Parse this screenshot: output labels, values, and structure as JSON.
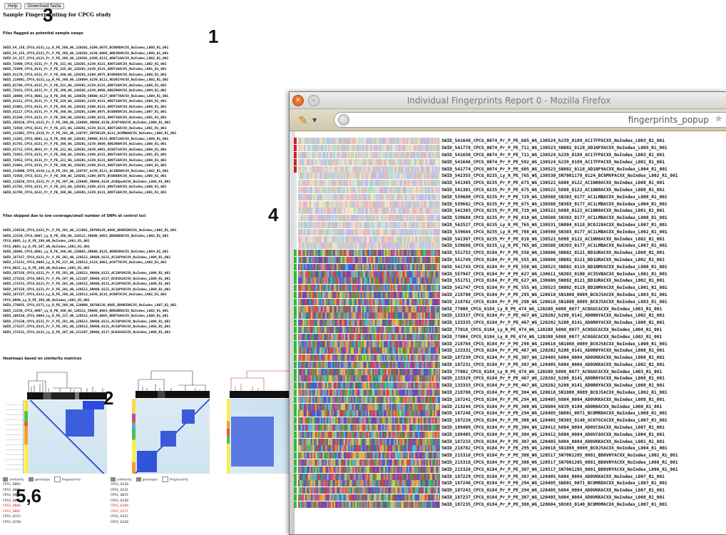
{
  "page": {
    "buttons": [
      "Help",
      "Download fasta"
    ],
    "title": "Sample Fingerprinting for CPCG study",
    "section1": "Files flagged as potential sample swaps",
    "section2": "Files skipped due to low coverage/small number of SNPs at control loci",
    "section3": "Heatmaps based on similarity matrices"
  },
  "callouts": {
    "c1": "1",
    "c2": "2",
    "c3": "3",
    "c4": "4",
    "c56": "5,6"
  },
  "flagged_files": [
    "SWID_54_156_CPCG_0131_Ly_R_PE_386_WG_120201_h209_0075_BC0D6DACXX_NoIndex_L008_R1_001",
    "SWID_54_155_CPCG_0131_Pr_P_PE_386_WG_120201_h239_0086_AD0JKHACXX_NoIndex_L008_R1_001",
    "SWID_54_157_CPCG_0131_Pr_P_PE_386_WG_120201_h209_0131_AD0T1AACXX_NoIndex_L002_R1_001",
    "SWID_72890_CPCG_0131_Pr_P_PE_221_WG_120201_h239_0131_AD0T1AACXX_NoIndex_L002_R1_001",
    "SWID_72894_CPCG_0131_Pr_P_PE_225_WG_120201_h239_0131_AD0T1AACXX_NoIndex_L001_R1_001",
    "SWID_81179_CPCG_0131_Pr_P_PE_380_WG_120201_h209_0075_BC0D6DACXX_NoIndex_L008_R1_001",
    "SWID_116001_CPCG_0131_Ly_R_PE_380_WG_120804_h239_0111_AD1R1YACXX_NoIndex_L002_R1_001",
    "SWID_91708_CPCG_0131_Pr_P_PE_221_WG_120201_h239_0131_AD0T1AACXX_NoIndex_L008_R1_001",
    "SWID_72831_CPCG_0131_Pr_P_PE_380_WG_120202_h239_0088_AD0JKHACXX_NoIndex_L004_R1_001",
    "SWID_10080_CPCG_0001_Ly_R_PE_380_WG_120030_SN600_0127_BD0T7AACXX_NoIndex_L008_R1_001",
    "SWID_81111_CPCG_0131_Pr_P_PE_224_WG_120201_h239_0131_AD0T1AACXX_NoIndex_L004_R1_001",
    "SWID_81001_CPCG_0131_Pr_P_PE_386_WG_120201_h209_0131_AD0T1AACXX_NoIndex_L008_R1_001",
    "SWID_81117_CPCG_0131_Pr_P_PE_380_WG_120201_h209_0075_BC0D6DACXX_NoIndex_L007_R1_001",
    "SWID_81108_CPCG_0131_Pr_P_PE_386_WG_120201_h209_0131_AD0T1AACXX_NoIndex_L001_R1_001",
    "SWID_105610_CPCG_0131_Pr_P_PE_380_WG_120805_SN600_0130_AC0T4AACXX_NoIndex_L008_R1_001",
    "SWID_72850_CPCG_0131_Pr_P_PE_221_WG_120201_h239_0131_AD0T1AACXX_NoIndex_L001_R1_001",
    "SWID_111001_CPCG_0138_Pr_P_PE_381_WG_120707_SN700129_0111_AC0MWAACXX_NoIndex_L008_R1_001",
    "SWID_11201_CPCG_0001_Ly_R_PE_380_WG_120201_SN600_0133_BD0T1AACXX_NoIndex_L008_R1_001",
    "SWID_81701_CPCG_0131_Pr_P_PE_386_WG_120201_h239_0088_AD0JKHACXX_NoIndex_L008_R1_001",
    "SWID_81712_CPCG_0031_Pr_P_PE_221_WG_120201_h839_0081_AC0GT1ACXX_NoIndex_L008_R1_001",
    "SWID_72853_CPCG_0131_Pr_P_PE_380_WG_120201_h209_0131_AD0T1AACXX_NoIndex_L001_R1_001",
    "SWID_72852_CPCG_0131_Pr_P_PE_221_WG_120201_h239_0131_AD0T1AACXX_NoIndex_L008_R1_001",
    "SWID_81001_CPCG_0131_Pr_P_PE_380_WG_120201_h209_0131_AD0T1AACXX_NoIndex_L004_R1_001",
    "SWID_214000_CPCG_0138_Ly_R_PE_381_WG_120707_h239_0121_AC1REHACXX_NoIndex_L002_R1_001",
    "SWID_72850_CPCG_0131_Pr_P_PE_380_WG_120201_h209_0075_BC0D6DACXX_NoIndex_L008_R1_001",
    "SWID_115010_CPCG_0131_Pr_P_PE_387_WG_120805_SN600_0126_AC0UpuACXX_NoIndex_L008_R1_001",
    "SWID_81701_CPCG_0131_Pr_P_PE_221_WG_120201_h209_0131_AD0T1AACXX_NoIndex_L008_R1_001",
    "SWID_81708_CPCG_0131_Pr_P_PE_386_WG_120201_h239_0131_AD0T1AACXX_NoIndex_L001_R1_001"
  ],
  "skipped_files": [
    "SWID_136529_CPCG_0152_Pr_P_PE_381_WG_121001_SN700129_0088_BD0K5DACXX_NoIndex_L002_R1_001",
    "SWID_11539_CPCG_0007_Ly_R_PE_380_WG_120111_SN600_0083_BD0GBDACXX_NoIndex_L002_R1_001",
    "CPCG_0001_Ly_R_PE_380_WG_NoIndex_L001_R1_001",
    "CPCG_0003_Ly_R_PE_387_WG_NoIndex_L001_R1_001",
    "SWID_10005_CPCG_0001_Ly_R_PE_380_WG_120001_SN600_0125_AD0D2RACXX_NoIndex_L004_R1_001",
    "SWID_187157_CPCG_0131_Pr_P_PE_381_WG_120512_SN600_0131_AC1UPVACXX_NoIndex_L008_R1_001",
    "SWID_171531_CPCG_0005_Ly_R_PE_317_WG_120512_h119_0081_AC0TTACXX_NoIndex_L002_R1_001",
    "CPCG_0021_Ly_R_PE_380_WG_NoIndex_L001_R1_001",
    "SWID_187156_CPCG_0131_Pr_P_PE_381_WG_120512_SN600_0131_AC1UPVACXX_NoIndex_L008_R1_001",
    "SWID_171532_CPCG_0031_Pr_P_PE_387_WG_121107_SN600_0117_BC01N1ACXX_NoIndex_L008_R1_001",
    "SWID_171531_CPCG_0131_Pr_P_PE_381_WG_120512_SN600_0131_AC1UPVACXX_NoIndex_L008_R1_001",
    "SWID_187158_CPCG_0131_Pr_P_PE_381_WG_120512_SN600_0131_AC1UPVACXX_NoIndex_L004_R1_001",
    "SWID_187157_CPCG_0131_Ly_R_PE_386_WG_120512_h839_0118_AC0NTACXX_NoIndex_L002_R1_001",
    "CPCG_0060_Ly_R_PE_380_WG_NoIndex_L001_R1_001",
    "SWID_170855_CPCG_0171_Ly_R_PE_388_WG_120000_SN700130_0085_BD0K5DACXX_NoIndex_L007_R1_001",
    "SWID_11530_CPCG_0007_Ly_R_PE_380_WG_120111_SN600_0083_BD0GBDACXX_NoIndex_L002_R1_001",
    "SWID_108150_CPCG_0004_Ly_R_PE_317_WG_120512_h839_0085_BD0T5AACXX_NoIndex_L008_R1_001",
    "SWID_171530_CPCG_0131_Pr_P_PE_381_WG_120512_SN600_0131_AC1UPVACXX_NoIndex_L008_R1_001",
    "SWID_171537_CPCG_0131_Pr_P_PE_381_WG_120512_SN600_0131_AC1UPVACXX_NoIndex_L002_R1_001",
    "SWID_171531_CPCG_0131_Ly_R_PE_387_WG_121107_SN600_0117_BC01N1ACXX_NoIndex_L008_R1_001"
  ],
  "heatmaps": {
    "legend": [
      "similarity",
      "genotype",
      "fingerprints"
    ],
    "samples": [
      [
        "CPCG_0003",
        "CPCG_0001",
        "CPCG_0004",
        "CPCG_0005",
        "CPCG_0006",
        "CPCG_0007",
        "CPCG_0152",
        "CPCG_0150"
      ],
      [
        "CPCG_0130",
        "CPCG_0131",
        "CPCG_0035",
        "CPCG_0138",
        "CPCG_0180",
        "CPCG_0171",
        "CPCG_0152",
        "CPCG_0120"
      ]
    ]
  },
  "popup": {
    "window_title": "Individual Fingerprints Report 0 - Mozilla Firefox",
    "url": "fingerprints_popup",
    "rows": [
      {
        "marker": "#cc2222",
        "label": "SWID_541648_CPCG_0074_Pr_P_PE_605_WG_130524_h239_0189_AC1TFPACXX_NoIndex_L003_R1_001"
      },
      {
        "marker": "#cc2222",
        "label": "SWID_541778_CPCG_0074_Pr_P_PE_711_WG_130523_SN802_0118_AD1NF9ACXX_NoIndex_L005_R1_001"
      },
      {
        "marker": "#cc2222",
        "label": "SWID_541650_CPCG_0074_Pr_P_PE_711_WG_130524_h239_0189_AC1TFPACXX_NoIndex_L003_R1_001"
      },
      {
        "marker": "#cc2222",
        "label": "SWID_541646_CPCG_0074_Pr_P_PE_592_WG_130524_h239_0189_AC1TFPACXX_NoIndex_L001_R1_001"
      },
      {
        "marker": "#cc2222",
        "label": "SWID_541774_CPCG_0074_Pr_P_PE_605_WG_130523_SN802_0118_AD1NF9ACXX_NoIndex_L004_R1_001"
      },
      {
        "marker": "#dde6ee",
        "label": "SWID_542355_CPCG_0235_Ly_R_PE_765_WG_130530_SN7001179_0124_BC0MVPACXX_NoIndex_L002_R1_001"
      },
      {
        "marker": "#dde6ee",
        "label": "SWID_541305_CPCG_0235_Pr_P_PE_675_WG_130522_h808_0122_AC1N00ACXX_NoIndex_L008_R1_001"
      },
      {
        "marker": "#dde6ee",
        "label": "SWID_541301_CPCG_0235_Pr_P_PE_675_WG_130522_h808_0122_AC1N00ACXX_NoIndex_L008_R1_001"
      },
      {
        "marker": "#dde6ee",
        "label": "SWID_539680_CPCG_0235_Pr_P_PE_729_WG_130508_SN303_0177_AC1LMBACXX_NoIndex_L008_R1_001"
      },
      {
        "marker": "#dde6ee",
        "label": "SWID_539682_CPCG_0235_Pr_P_PE_675_WG_130508_SN303_0177_AC1LMBACXX_NoIndex_L004_R1_001"
      },
      {
        "marker": "#dde6ee",
        "label": "SWID_541303_CPCG_0235_Pr_P_PE_729_WG_130522_h808_0122_AC1N00ACXX_NoIndex_L001_R1_001"
      },
      {
        "marker": "#dde6ee",
        "label": "SWID_539688_CPCG_0235_Pr_P_PE_810_WG_130508_SN303_0177_AC1LMBACXX_NoIndex_L008_R1_001"
      },
      {
        "marker": "#dde6ee",
        "label": "SWID_562527_CPCG_0235_Ly_R_PE_765_WG_130531_SN804_0118_BC0J20ACXX_NoIndex_L007_R1_001"
      },
      {
        "marker": "#dde6ee",
        "label": "SWID_539684_CPCG_0235_Ly_R_PE_788_WG_130508_SN303_0177_AC1LMBACXX_NoIndex_L002_R1_001"
      },
      {
        "marker": "#dde6ee",
        "label": "SWID_541307_CPCG_0235_Pr_P_PE_810_WG_130522_h808_0122_AC1N00ACXX_NoIndex_L002_R1_001"
      },
      {
        "marker": "#dde6ee",
        "label": "SWID_539686_CPCG_0235_Ly_R_PE_765_WG_130508_SN303_0177_AC1LMBACXX_NoIndex_L007_R1_001"
      },
      {
        "marker": "#33bb33",
        "label": "SWID_551753_CPCG_0184_Pr_P_PE_558_WG_130606_SN802_0121_BD1URACXX_NoIndex_L008_R1_001"
      },
      {
        "marker": "#33bb33",
        "label": "SWID_551749_CPCG_0184_Pr_P_PE_555_WG_130606_SN802_0121_BD1URACXX_NoIndex_L002_R1_001"
      },
      {
        "marker": "#33bb33",
        "label": "SWID_541743_CPCG_0184_Pr_P_PE_558_WG_130523_SN802_0119_BD1NMVACXX_NoIndex_L008_R1_001"
      },
      {
        "marker": "#33bb33",
        "label": "SWID_557947_CPCG_0184_Pr_P_PE_627_WG_130611_SN303_0180_AC3SVBACXX_NoIndex_L001_R1_001"
      },
      {
        "marker": "#33bb33",
        "label": "SWID_551751_CPCG_0184_Pr_P_PE_627_WG_130606_SN802_0121_BD1URACXX_NoIndex_L002_R1_001"
      },
      {
        "marker": "#33bb33",
        "label": "SWID_541747_CPCG_0184_Pr_P_PE_555_WG_130523_SN802_0119_BD1NMVACXX_NoIndex_L001_R1_001"
      },
      {
        "marker": "#33bb33",
        "label": "SWID_218780_CPCG_0184_Pr_P_PE_295_WG_120618_SN1088_0089_BC0J5ACXX_NoIndex_L003_R1_001"
      },
      {
        "marker": "#33bb33",
        "label": "SWID_218782_CPCG_0184_Pr_P_PE_298_WG_120618_SN1088_0089_BC0J5ACXX_NoIndex_L003_R1_001"
      },
      {
        "marker": "#33bb33",
        "label": "SWID_77008_CPCG_0184_Ly_R_PE_474_WG_120208_h808_0077_AC0GGCACXX_NoIndex_L001_R1_001"
      },
      {
        "marker": "#33bb33",
        "label": "SWID_133337_CPCG_0184_Pr_P_PE_467_WG_120202_h208_0141_AD0R0YACXX_NoIndex_L002_R1_001"
      },
      {
        "marker": "#33bb33",
        "label": "SWID_133335_CPCG_0184_Pr_P_PE_467_WG_120202_h208_0141_AD0R0YACXX_NoIndex_L008_R1_001"
      },
      {
        "marker": "#33bb33",
        "label": "SWID_77010_CPCG_0184_Ly_R_PE_474_WG_120208_h808_0077_AC0GGCACXX_NoIndex_L004_R1_001"
      },
      {
        "marker": "#33bb33",
        "label": "SWID_77004_CPCG_0184_Ly_R_PE_474_WG_120208_h808_0077_AC0GGCACXX_NoIndex_L002_R1_001"
      },
      {
        "marker": "#33bb33",
        "label": "SWID_218784_CPCG_0184_Pr_P_PE_298_WG_120618_SN1088_0089_BC0J5ACXX_NoIndex_L008_R1_001"
      },
      {
        "marker": "#33bb33",
        "label": "SWID_133331_CPCG_0184_Pr_P_PE_467_WG_120202_h208_0141_AD0R0YACXX_NoIndex_L008_R1_001"
      },
      {
        "marker": "#33bb33",
        "label": "SWID_187239_CPCG_0184_Pr_P_PE_307_WG_120405_h804_0084_AD0VKKACXX_NoIndex_L008_R1_001"
      },
      {
        "marker": "#33bb33",
        "label": "SWID_187231_CPCG_0184_Pr_P_PE_307_WG_120405_h804_0084_AD0VKKACXX_NoIndex_L002_R1_001"
      },
      {
        "marker": "#33bb33",
        "label": "SWID_77002_CPCG_0184_Ly_R_PE_474_WG_120208_h808_0077_AC0GGCACXX_NoIndex_L003_R1_001"
      },
      {
        "marker": "#33bb33",
        "label": "SWID_133329_CPCG_0184_Pr_P_PE_467_WG_120202_h208_0141_AD0R0YACXX_NoIndex_L008_R1_001"
      },
      {
        "marker": "#33bb33",
        "label": "SWID_133333_CPCG_0184_Pr_P_PE_467_WG_120202_h208_0141_AD0R0YACXX_NoIndex_L008_R1_001"
      },
      {
        "marker": "#33bb33",
        "label": "SWID_218788_CPCG_0184_Pr_P_PE_304_WG_120618_SN1088_0089_BC0J5ACXX_NoIndex_L002_R1_001"
      },
      {
        "marker": "#33bb33",
        "label": "SWID_187241_CPCG_0184_Pr_P_PE_294_WG_120405_h804_0084_AD0VKKACXX_NoIndex_L008_R1_001"
      },
      {
        "marker": "#33bb33",
        "label": "SWID_213244_CPCG_0184_Pr_P_PE_308_WG_120604_h839_0180_AD0R0ACXX_NoIndex_L008_R1_001"
      },
      {
        "marker": "#33bb33",
        "label": "SWID_187248_CPCG_0184_Pr_P_PE_294_WG_120405_SN801_0071_BC0MRDACXX_NoIndex_L008_R1_001"
      },
      {
        "marker": "#33bb33",
        "label": "SWID_187226_CPCG_0184_Pr_P_PE_308_WG_120405_SN303_0148_AC07GCACXX_NoIndex_L007_R1_001"
      },
      {
        "marker": "#33bb33",
        "label": "SWID_189409_CPCG_0184_Pr_P_PE_304_WG_120412_h804_0084_AD0VC8ACXX_NoIndex_L007_R1_001"
      },
      {
        "marker": "#33bb33",
        "label": "SWID_189405_CPCG_0184_Pr_P_PE_304_WG_120412_h804_0084_AD0VC8ACXX_NoIndex_L004_R1_001"
      },
      {
        "marker": "#33bb33",
        "label": "SWID_187233_CPCG_0184_Pr_P_PE_307_WG_120405_h804_0084_AD0VKKACXX_NoIndex_L001_R1_001"
      },
      {
        "marker": "#33bb33",
        "label": "SWID_218782_CPCG_0184_Pr_P_PE_295_WG_120618_SN1088_0089_BC0J5ACXX_NoIndex_L004_R1_001"
      },
      {
        "marker": "#33bb33",
        "label": "SWID_215316_CPCG_0184_Pr_P_PE_308_WG_120517_SN7001205_0081_BD0VHYACXX_NoIndex_L002_R1_001"
      },
      {
        "marker": "#33bb33",
        "label": "SWID_215318_CPCG_0184_Pr_P_PE_308_WG_120517_SN7001205_0081_BD0VHYACXX_NoIndex_L008_R1_001"
      },
      {
        "marker": "#33bb33",
        "label": "SWID_215320_CPCG_0184_Pr_P_PE_307_WG_120517_SN7001205_0081_BD0VHYACXX_NoIndex_L006_R1_001"
      },
      {
        "marker": "#33bb33",
        "label": "SWID_187229_CPCG_0184_Pr_P_PE_307_WG_120405_h804_0084_AD0VKKACXX_NoIndex_L007_R1_001"
      },
      {
        "marker": "#33bb33",
        "label": "SWID_187246_CPCG_0184_Pr_P_PE_294_WG_120405_SN801_0071_BC0MRDACXX_NoIndex_L007_R1_001"
      },
      {
        "marker": "#33bb33",
        "label": "SWID_187243_CPCG_0184_Pr_P_PE_294_WG_120405_h804_0084_AD0VKKACXX_NoIndex_L007_R1_001"
      },
      {
        "marker": "#33bb33",
        "label": "SWID_187237_CPCG_0184_Pr_P_PE_307_WG_120405_h804_0084_AD0VKKACXX_NoIndex_L008_R1_001"
      },
      {
        "marker": "#33bb33",
        "label": "SWID_187235_CPCG_0184_Pr_P_PE_308_WG_120604_SN303_0148_BC0MOMACXX_NoIndex_L007_R1_001"
      }
    ]
  },
  "colors": {
    "firefox_orange": "#e8702a",
    "heat_blue": "#1f3fd6",
    "heat_bg": "#dcebf4"
  }
}
